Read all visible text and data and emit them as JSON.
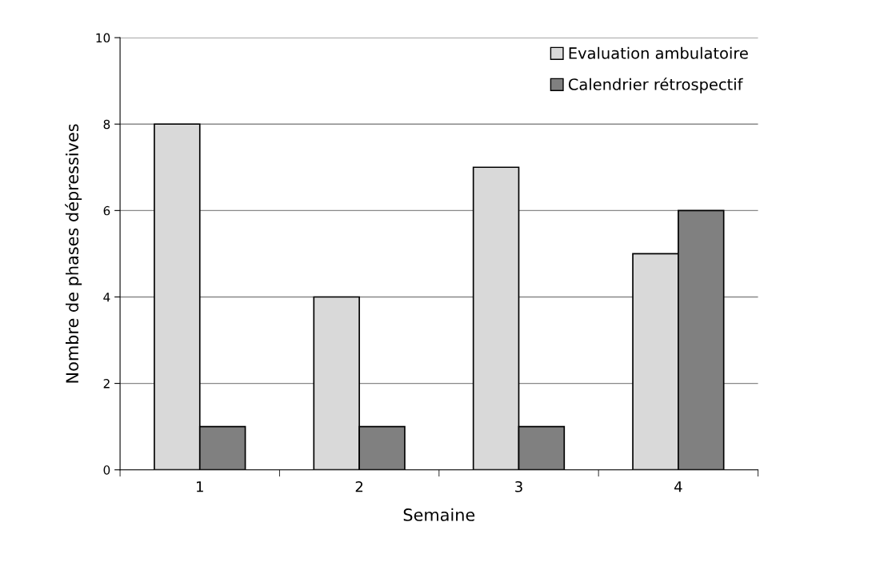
{
  "chart_data": {
    "type": "bar",
    "xlabel": "Semaine",
    "ylabel": "Nombre de phases dépressives",
    "categories": [
      "1",
      "2",
      "3",
      "4"
    ],
    "series": [
      {
        "name": "Evaluation ambulatoire",
        "color": "#d9d9d9",
        "values": [
          8,
          4,
          7,
          5
        ]
      },
      {
        "name": "Calendrier rétrospectif",
        "color": "#808080",
        "values": [
          1,
          1,
          1,
          6
        ]
      }
    ],
    "ylim": [
      0,
      10
    ],
    "yticks": [
      0,
      2,
      4,
      6,
      8,
      10
    ],
    "grid": "y",
    "legend": "top right"
  }
}
